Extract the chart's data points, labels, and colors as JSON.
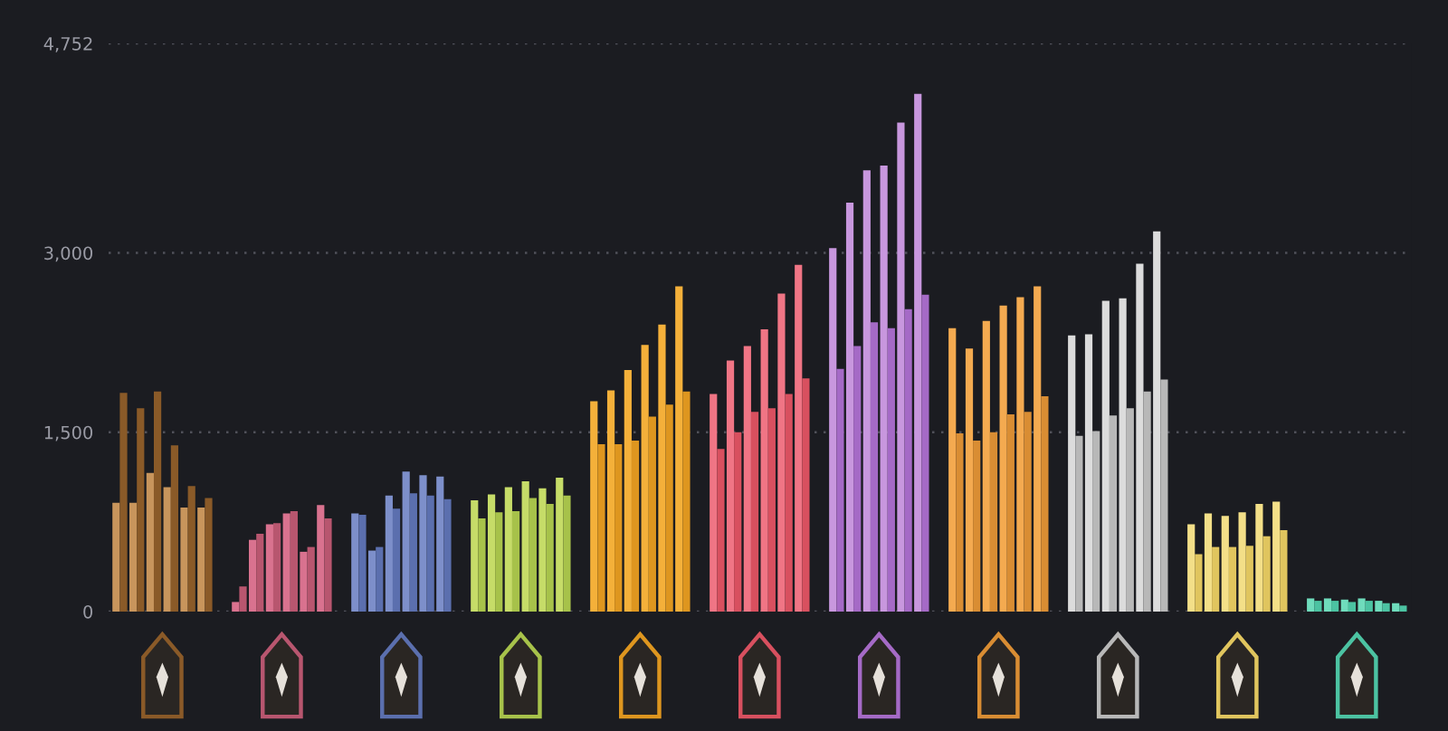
{
  "chart_data": {
    "type": "bar",
    "categories": [
      null,
      null,
      null,
      null,
      null,
      null,
      null,
      null,
      null,
      null,
      null
    ],
    "series": [
      {
        "colors": [
          "#c8955c",
          "#d9728f",
          "#7d8fca",
          "#c6dc68",
          "#f4b03a",
          "#f07585",
          "#c897de",
          "#f4aa50",
          "#dcdcdc",
          "#f3df88",
          "#6fdcbc"
        ],
        "values": [
          910,
          80,
          820,
          930,
          1760,
          1820,
          3040,
          2370,
          2310,
          730,
          110
        ]
      },
      {
        "colors": [
          "#8a5a28",
          "#b8566f",
          "#5b6fae",
          "#a7c24a",
          "#de961f",
          "#d8505f",
          "#a56ac6",
          "#d98d33",
          "#b8b8b8",
          "#e0c55e",
          "#4cc3a2"
        ],
        "values": [
          1830,
          210,
          810,
          780,
          1400,
          1360,
          2030,
          1490,
          1470,
          480,
          90
        ]
      },
      {
        "colors": [
          "#c8955c",
          "#d9728f",
          "#7d8fca",
          "#c6dc68",
          "#f4b03a",
          "#f07585",
          "#c897de",
          "#f4aa50",
          "#dcdcdc",
          "#f3df88",
          "#6fdcbc"
        ],
        "values": [
          910,
          600,
          510,
          980,
          1850,
          2100,
          3420,
          2200,
          2320,
          820,
          110
        ]
      },
      {
        "colors": [
          "#8a5a28",
          "#b8566f",
          "#5b6fae",
          "#a7c24a",
          "#de961f",
          "#d8505f",
          "#a56ac6",
          "#d98d33",
          "#b8b8b8",
          "#e0c55e",
          "#4cc3a2"
        ],
        "values": [
          1700,
          650,
          540,
          830,
          1400,
          1500,
          2220,
          1430,
          1510,
          540,
          90
        ]
      },
      {
        "colors": [
          "#c8955c",
          "#d9728f",
          "#7d8fca",
          "#c6dc68",
          "#f4b03a",
          "#f07585",
          "#c897de",
          "#f4aa50",
          "#dcdcdc",
          "#f3df88",
          "#6fdcbc"
        ],
        "values": [
          1160,
          730,
          970,
          1040,
          2020,
          2220,
          3690,
          2430,
          2600,
          800,
          100
        ]
      },
      {
        "colors": [
          "#8a5a28",
          "#b8566f",
          "#5b6fae",
          "#a7c24a",
          "#de961f",
          "#d8505f",
          "#a56ac6",
          "#d98d33",
          "#b8b8b8",
          "#e0c55e",
          "#4cc3a2"
        ],
        "values": [
          1840,
          740,
          860,
          840,
          1430,
          1670,
          2420,
          1500,
          1640,
          540,
          80
        ]
      },
      {
        "colors": [
          "#c8955c",
          "#d9728f",
          "#7d8fca",
          "#c6dc68",
          "#f4b03a",
          "#f07585",
          "#c897de",
          "#f4aa50",
          "#dcdcdc",
          "#f3df88",
          "#6fdcbc"
        ],
        "values": [
          1040,
          820,
          1170,
          1090,
          2230,
          2360,
          3730,
          2560,
          2620,
          830,
          110
        ]
      },
      {
        "colors": [
          "#8a5a28",
          "#b8566f",
          "#5b6fae",
          "#a7c24a",
          "#de961f",
          "#d8505f",
          "#a56ac6",
          "#d98d33",
          "#b8b8b8",
          "#e0c55e",
          "#4cc3a2"
        ],
        "values": [
          1390,
          840,
          990,
          950,
          1630,
          1700,
          2370,
          1650,
          1700,
          550,
          90
        ]
      },
      {
        "colors": [
          "#c8955c",
          "#d9728f",
          "#7d8fca",
          "#c6dc68",
          "#f4b03a",
          "#f07585",
          "#c897de",
          "#f4aa50",
          "#dcdcdc",
          "#f3df88",
          "#6fdcbc"
        ],
        "values": [
          870,
          500,
          1140,
          1030,
          2400,
          2660,
          4090,
          2630,
          2910,
          900,
          90
        ]
      },
      {
        "colors": [
          "#8a5a28",
          "#b8566f",
          "#5b6fae",
          "#a7c24a",
          "#de961f",
          "#d8505f",
          "#a56ac6",
          "#d98d33",
          "#b8b8b8",
          "#e0c55e",
          "#4cc3a2"
        ],
        "values": [
          1050,
          540,
          970,
          900,
          1730,
          1820,
          2530,
          1670,
          1840,
          630,
          70
        ]
      },
      {
        "colors": [
          "#c8955c",
          "#d9728f",
          "#7d8fca",
          "#c6dc68",
          "#f4b03a",
          "#f07585",
          "#c897de",
          "#f4aa50",
          "#dcdcdc",
          "#f3df88",
          "#6fdcbc"
        ],
        "values": [
          870,
          890,
          1130,
          1120,
          2720,
          2900,
          4330,
          2720,
          3180,
          920,
          70
        ]
      },
      {
        "colors": [
          "#8a5a28",
          "#b8566f",
          "#5b6fae",
          "#a7c24a",
          "#de961f",
          "#d8505f",
          "#a56ac6",
          "#d98d33",
          "#b8b8b8",
          "#e0c55e",
          "#4cc3a2"
        ],
        "values": [
          950,
          780,
          940,
          970,
          1840,
          1950,
          2650,
          1800,
          1940,
          680,
          50
        ]
      }
    ],
    "ylim": [
      0,
      4752
    ],
    "yticks": [
      0,
      {
        "value": 1500,
        "label": "1,500"
      },
      {
        "value": 3000,
        "label": "3,000"
      },
      {
        "value": 4752,
        "label": "4,752"
      }
    ],
    "grid": "y",
    "tick_labels": "y"
  }
}
